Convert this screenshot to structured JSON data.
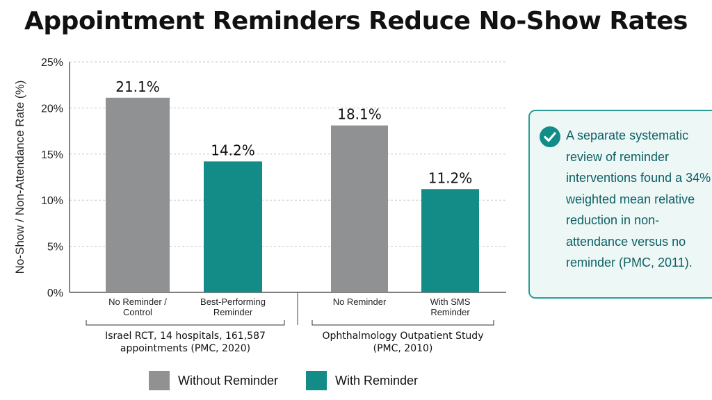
{
  "title": "Appointment Reminders Reduce No-Show Rates",
  "colors": {
    "without": "#8f9193",
    "with": "#138c88",
    "grid": "#c7c7c7",
    "callout_text": "#0e5f63"
  },
  "callout": {
    "icon": "check-circle-icon",
    "text": "A separate systematic review of reminder interventions found a 34% weighted mean relative reduction in non-attendance versus no reminder (PMC, 2011)."
  },
  "legend": [
    {
      "label": "Without Reminder",
      "color": "#8f9193"
    },
    {
      "label": "With Reminder",
      "color": "#138c88"
    }
  ],
  "chart_data": {
    "type": "bar",
    "title": "Appointment Reminders Reduce No-Show Rates",
    "ylabel": "No-Show / Non-Attendance Rate (%)",
    "xlabel": "",
    "ylim": [
      0,
      25
    ],
    "yticks": [
      "0%",
      "5%",
      "10%",
      "15%",
      "20%",
      "25%"
    ],
    "grid": true,
    "legend_position": "bottom",
    "bars": [
      {
        "category": "No Reminder / Control",
        "value": 21.1,
        "label": "21.1%",
        "series": "Without Reminder"
      },
      {
        "category": "Best-Performing Reminder",
        "value": 14.2,
        "label": "14.2%",
        "series": "With Reminder"
      },
      {
        "category": "No Reminder",
        "value": 18.1,
        "label": "18.1%",
        "series": "Without Reminder"
      },
      {
        "category": "With SMS Reminder",
        "value": 11.2,
        "label": "11.2%",
        "series": "With Reminder"
      }
    ],
    "groups": [
      {
        "label": "Israel RCT, 14 hospitals, 161,587 appointments (PMC, 2020)"
      },
      {
        "label": "Ophthalmology Outpatient Study (PMC, 2010)"
      }
    ]
  }
}
